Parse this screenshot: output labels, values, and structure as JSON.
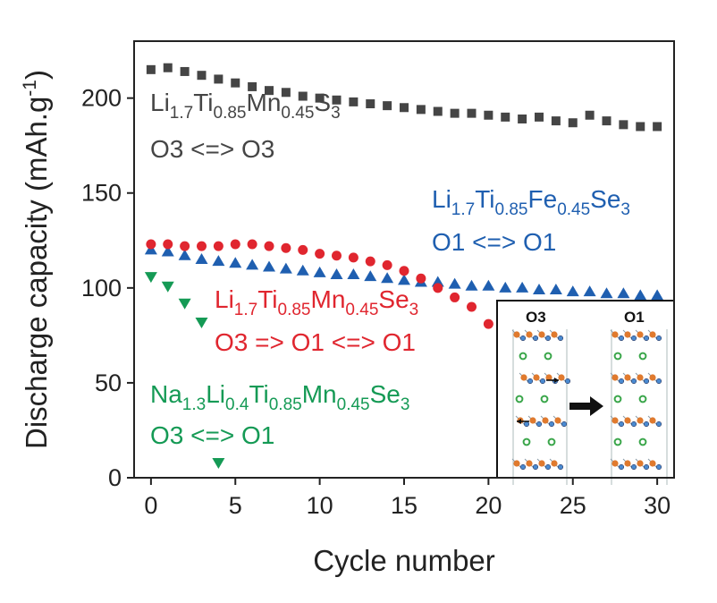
{
  "chart_data": {
    "type": "scatter",
    "xlabel": "Cycle number",
    "ylabel": "Discharge capacity (mAh.g",
    "ylabel_sup": "-1",
    "ylabel_close": ")",
    "xlim": [
      -1,
      31
    ],
    "ylim": [
      0,
      230
    ],
    "xticks": [
      "0",
      "5",
      "10",
      "15",
      "20",
      "25",
      "30"
    ],
    "yticks": [
      "0",
      "50",
      "100",
      "150",
      "200"
    ],
    "grid": false,
    "series": [
      {
        "name": "Li1.7Ti0.85Mn0.45S3",
        "marker": "square",
        "color": "#454545",
        "x": [
          0,
          1,
          2,
          3,
          4,
          5,
          6,
          7,
          8,
          9,
          10,
          11,
          12,
          13,
          14,
          15,
          16,
          17,
          18,
          19,
          20,
          21,
          22,
          23,
          24,
          25,
          26,
          27,
          28,
          29,
          30
        ],
        "y": [
          215,
          216,
          214,
          212,
          210,
          208,
          206,
          204,
          203,
          201,
          200,
          199,
          198,
          197,
          196,
          195,
          194,
          193,
          192,
          192,
          191,
          190,
          189,
          190,
          188,
          187,
          191,
          188,
          186,
          185,
          185
        ]
      },
      {
        "name": "Li1.7Ti0.85Fe0.45Se3",
        "marker": "triangle-up",
        "color": "#1f5fb0",
        "x": [
          0,
          1,
          2,
          3,
          4,
          5,
          6,
          7,
          8,
          9,
          10,
          11,
          12,
          13,
          14,
          15,
          16,
          17,
          18,
          19,
          20,
          21,
          22,
          23,
          24,
          25,
          26,
          27,
          28,
          29,
          30
        ],
        "y": [
          120,
          119,
          117,
          115,
          114,
          113,
          112,
          111,
          110,
          109,
          108,
          107,
          107,
          106,
          105,
          104,
          103,
          103,
          102,
          101,
          101,
          100,
          100,
          99,
          99,
          98,
          98,
          97,
          97,
          96,
          96
        ]
      },
      {
        "name": "Li1.7Ti0.85Mn0.45Se3",
        "marker": "circle",
        "color": "#e0262f",
        "x": [
          0,
          1,
          2,
          3,
          4,
          5,
          6,
          7,
          8,
          9,
          10,
          11,
          12,
          13,
          14,
          15,
          16,
          17,
          18,
          19,
          20
        ],
        "y": [
          123,
          123,
          122,
          122,
          122,
          123,
          123,
          122,
          121,
          120,
          118,
          117,
          116,
          114,
          112,
          109,
          105,
          100,
          95,
          90,
          81
        ]
      },
      {
        "name": "Na1.3Li0.4Ti0.85Mn0.45Se3",
        "marker": "triangle-down",
        "color": "#159a55",
        "x": [
          0,
          1,
          2,
          3,
          4
        ],
        "y": [
          106,
          101,
          92,
          82,
          8
        ]
      }
    ]
  },
  "annotations": [
    {
      "id": "s3",
      "color": "#454545",
      "line1": [
        [
          "Li",
          ""
        ],
        [
          "1.7",
          "sub"
        ],
        [
          "Ti",
          ""
        ],
        [
          "0.85",
          "sub"
        ],
        [
          "Mn",
          ""
        ],
        [
          "0.45",
          "sub"
        ],
        [
          "S",
          ""
        ],
        [
          "3",
          "sub"
        ]
      ],
      "line2": "O3 <=> O3"
    },
    {
      "id": "fe",
      "color": "#1f5fb0",
      "line1": [
        [
          "Li",
          ""
        ],
        [
          "1.7",
          "sub"
        ],
        [
          "Ti",
          ""
        ],
        [
          "0.85",
          "sub"
        ],
        [
          "Fe",
          ""
        ],
        [
          "0.45",
          "sub"
        ],
        [
          "Se",
          ""
        ],
        [
          "3",
          "sub"
        ]
      ],
      "line2": "O1 <=> O1"
    },
    {
      "id": "mn",
      "color": "#e0262f",
      "line1": [
        [
          "Li",
          ""
        ],
        [
          "1.7",
          "sub"
        ],
        [
          "Ti",
          ""
        ],
        [
          "0.85",
          "sub"
        ],
        [
          "Mn",
          ""
        ],
        [
          "0.45",
          "sub"
        ],
        [
          "Se",
          ""
        ],
        [
          "3",
          "sub"
        ]
      ],
      "line2": "O3 => O1 <=> O1"
    },
    {
      "id": "na",
      "color": "#159a55",
      "line1": [
        [
          "Na",
          ""
        ],
        [
          "1.3",
          "sub"
        ],
        [
          "Li",
          ""
        ],
        [
          "0.4",
          "sub"
        ],
        [
          "Ti",
          ""
        ],
        [
          "0.85",
          "sub"
        ],
        [
          "Mn",
          ""
        ],
        [
          "0.45",
          "sub"
        ],
        [
          "Se",
          ""
        ],
        [
          "3",
          "sub"
        ]
      ],
      "line2": "O3 <=> O1"
    }
  ],
  "inset": {
    "left_label": "O3",
    "right_label": "O1"
  }
}
